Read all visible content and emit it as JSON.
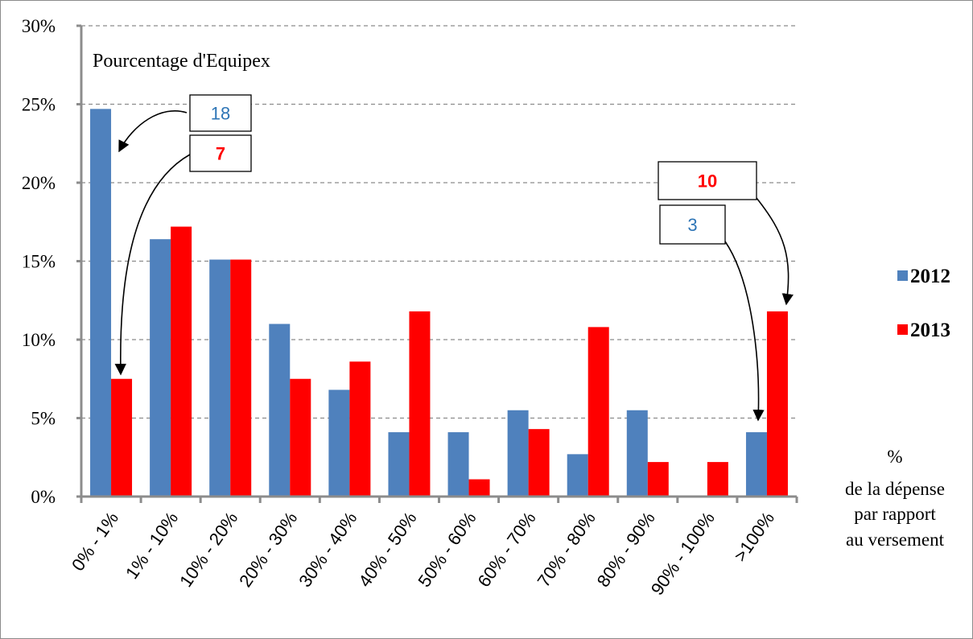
{
  "chart_data": {
    "type": "bar",
    "title": "",
    "ylabel": "Pourcentage d'Equipex",
    "xlabel_lines": [
      "%",
      "de la dépense",
      "par rapport",
      "au versement"
    ],
    "ylim": [
      0,
      30
    ],
    "yticks": [
      0,
      5,
      10,
      15,
      20,
      25,
      30
    ],
    "ytick_labels": [
      "0%",
      "5%",
      "10%",
      "15%",
      "20%",
      "25%",
      "30%"
    ],
    "grid": true,
    "legend_position": "right",
    "categories": [
      "0% - 1%",
      "1% - 10%",
      "10% - 20%",
      "20% - 30%",
      "30% - 40%",
      "40% - 50%",
      "50% - 60%",
      "60% - 70%",
      "70% - 80%",
      "80% - 90%",
      "90% - 100%",
      ">100%"
    ],
    "series": [
      {
        "name": "2012",
        "color": "#4f81bd",
        "values": [
          24.7,
          16.4,
          15.1,
          11.0,
          6.8,
          4.1,
          4.1,
          5.5,
          2.7,
          5.5,
          0,
          4.1
        ]
      },
      {
        "name": "2013",
        "color": "#ff0000",
        "values": [
          7.5,
          17.2,
          15.1,
          7.5,
          8.6,
          11.8,
          1.1,
          4.3,
          10.8,
          2.2,
          2.2,
          11.8
        ]
      }
    ],
    "annotations": [
      {
        "text": "18",
        "color": "#2e75b6",
        "bold": false,
        "series": 0,
        "category": 0
      },
      {
        "text": "7",
        "color": "#ff0000",
        "bold": true,
        "series": 1,
        "category": 0
      },
      {
        "text": "10",
        "color": "#ff0000",
        "bold": true,
        "series": 1,
        "category": 11
      },
      {
        "text": "3",
        "color": "#2e75b6",
        "bold": false,
        "series": 0,
        "category": 11
      }
    ]
  }
}
